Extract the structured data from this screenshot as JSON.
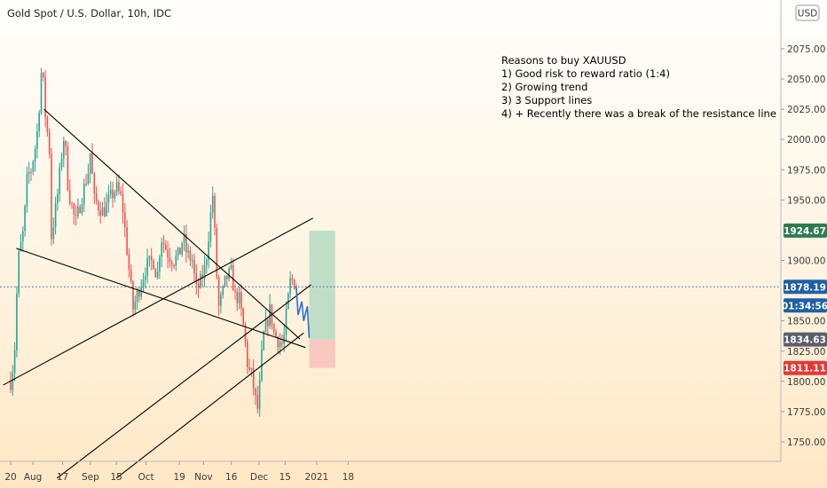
{
  "header": {
    "title": "Gold Spot / U.S. Dollar, 10h, IDC"
  },
  "currency_button": {
    "label": "USD"
  },
  "annotation": {
    "lines": [
      "Reasons to buy XAUUSD",
      "1) Good risk to reward ratio (1:4)",
      "2) Growing trend",
      "3) 3 Support lines",
      "4) + Recently there was a break of the resistance line"
    ]
  },
  "price_labels": {
    "take_profit": {
      "value": "1924.67",
      "color": "#2e7d52"
    },
    "current": {
      "value": "1878.19",
      "color": "#1f5fa8"
    },
    "countdown": {
      "value": "01:34:56",
      "color": "#1f5fa8"
    },
    "entry": {
      "value": "1834.63",
      "color": "#5a5f6b"
    },
    "stop_loss": {
      "value": "1811.11",
      "color": "#e53935"
    }
  },
  "chart_data": {
    "type": "candlestick",
    "title": "Gold Spot / U.S. Dollar, 10h, IDC",
    "y_ticks": [
      1750,
      1775,
      1800,
      1825,
      1850,
      1875,
      1900,
      1925,
      1950,
      1975,
      2000,
      2025,
      2050,
      2075
    ],
    "y_tick_labels": [
      "1750.00",
      "1775.00",
      "1800.00",
      "1825.00",
      "1850.00",
      "",
      "1900.00",
      "",
      "1950.00",
      "1975.00",
      "2000.00",
      "2025.00",
      "2050.00",
      "2075.00"
    ],
    "x_tick_labels": [
      "20",
      "Aug",
      "17",
      "Sep",
      "15",
      "Oct",
      "19",
      "Nov",
      "16",
      "Dec",
      "15",
      "2021",
      "18"
    ],
    "ylim": [
      1730,
      2100
    ],
    "current_price": 1878.19,
    "price_path": [
      [
        "2020-07-20",
        1800
      ],
      [
        "2020-07-22",
        1820
      ],
      [
        "2020-07-24",
        1900
      ],
      [
        "2020-07-27",
        1925
      ],
      [
        "2020-07-29",
        1970
      ],
      [
        "2020-07-31",
        1975
      ],
      [
        "2020-08-03",
        2000
      ],
      [
        "2020-08-05",
        2040
      ],
      [
        "2020-08-06",
        2070
      ],
      [
        "2020-08-07",
        2030
      ],
      [
        "2020-08-10",
        1990
      ],
      [
        "2020-08-11",
        1920
      ],
      [
        "2020-08-12",
        1930
      ],
      [
        "2020-08-14",
        1950
      ],
      [
        "2020-08-17",
        1995
      ],
      [
        "2020-08-18",
        2005
      ],
      [
        "2020-08-20",
        1960
      ],
      [
        "2020-08-24",
        1930
      ],
      [
        "2020-08-27",
        1950
      ],
      [
        "2020-08-31",
        1975
      ],
      [
        "2020-09-01",
        1990
      ],
      [
        "2020-09-03",
        1950
      ],
      [
        "2020-09-08",
        1940
      ],
      [
        "2020-09-11",
        1950
      ],
      [
        "2020-09-15",
        1960
      ],
      [
        "2020-09-18",
        1950
      ],
      [
        "2020-09-21",
        1905
      ],
      [
        "2020-09-24",
        1860
      ],
      [
        "2020-09-28",
        1880
      ],
      [
        "2020-10-01",
        1895
      ],
      [
        "2020-10-05",
        1900
      ],
      [
        "2020-10-07",
        1885
      ],
      [
        "2020-10-09",
        1920
      ],
      [
        "2020-10-13",
        1905
      ],
      [
        "2020-10-16",
        1900
      ],
      [
        "2020-10-19",
        1905
      ],
      [
        "2020-10-21",
        1920
      ],
      [
        "2020-10-23",
        1905
      ],
      [
        "2020-10-26",
        1900
      ],
      [
        "2020-10-28",
        1875
      ],
      [
        "2020-10-30",
        1880
      ],
      [
        "2020-11-02",
        1895
      ],
      [
        "2020-11-05",
        1940
      ],
      [
        "2020-11-06",
        1955
      ],
      [
        "2020-11-09",
        1860
      ],
      [
        "2020-11-11",
        1870
      ],
      [
        "2020-11-13",
        1885
      ],
      [
        "2020-11-16",
        1890
      ],
      [
        "2020-11-18",
        1870
      ],
      [
        "2020-11-20",
        1870
      ],
      [
        "2020-11-23",
        1840
      ],
      [
        "2020-11-25",
        1810
      ],
      [
        "2020-11-27",
        1805
      ],
      [
        "2020-11-30",
        1775
      ],
      [
        "2020-12-01",
        1790
      ],
      [
        "2020-12-03",
        1835
      ],
      [
        "2020-12-07",
        1860
      ],
      [
        "2020-12-09",
        1840
      ],
      [
        "2020-12-11",
        1835
      ],
      [
        "2020-12-14",
        1830
      ],
      [
        "2020-12-16",
        1860
      ],
      [
        "2020-12-18",
        1885
      ],
      [
        "2020-12-21",
        1880
      ],
      [
        "2020-12-22",
        1875
      ]
    ],
    "trend_lines": [
      {
        "name": "",
        "points": [
          [
            "2020-08-07",
            2025
          ],
          [
            "2020-12-23",
            1835
          ]
        ]
      },
      {
        "name": "",
        "points": [
          [
            "2020-07-23",
            1910
          ],
          [
            "2020-12-26",
            1828
          ]
        ]
      },
      {
        "name": "",
        "points": [
          [
            "2020-07-16",
            1797
          ],
          [
            "2020-12-30",
            1935
          ]
        ]
      },
      {
        "name": "",
        "points": [
          [
            "2020-08-14",
            1720
          ],
          [
            "2020-12-29",
            1880
          ]
        ]
      },
      {
        "name": "",
        "points": [
          [
            "2020-09-15",
            1720
          ],
          [
            "2020-12-25",
            1840
          ]
        ]
      }
    ],
    "projection": [
      [
        "2020-12-21",
        1878
      ],
      [
        "2020-12-22",
        1855
      ],
      [
        "2020-12-24",
        1866
      ],
      [
        "2020-12-25",
        1850
      ],
      [
        "2020-12-27",
        1862
      ],
      [
        "2020-12-28",
        1836
      ]
    ],
    "position": {
      "type": "long",
      "start": "2020-12-28",
      "end": "2021-01-11",
      "take_profit": 1924.67,
      "entry": 1834.63,
      "stop_loss": 1811.11
    },
    "colors": {
      "up": "#26a69a",
      "down": "#ef5350",
      "trend_line": "#000000",
      "projection": "#2f6fd6",
      "profit_zone": "#b5dac3",
      "loss_zone": "#f7c3bf",
      "current_line": "#1f5fa8"
    },
    "grid": false
  }
}
